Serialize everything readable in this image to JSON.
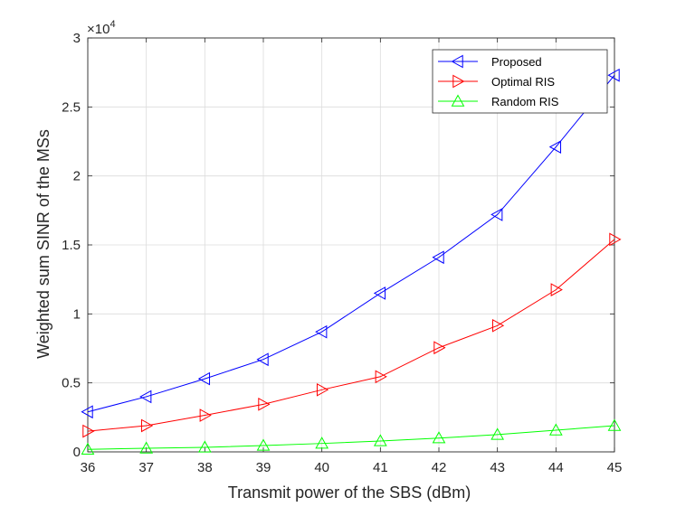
{
  "chart_data": {
    "type": "line",
    "xlabel": "Transmit power of the SBS (dBm)",
    "ylabel": "Weighted sum SINR of the MSs",
    "y_multiplier_base": "×10",
    "y_multiplier_exp": "4",
    "x": [
      36,
      37,
      38,
      39,
      40,
      41,
      42,
      43,
      44,
      45
    ],
    "xlim": [
      36,
      45
    ],
    "ylim": [
      0,
      30000
    ],
    "x_ticks": [
      "36",
      "37",
      "38",
      "39",
      "40",
      "41",
      "42",
      "43",
      "44",
      "45"
    ],
    "y_ticks": [
      "0",
      "0.5",
      "1",
      "1.5",
      "2",
      "2.5",
      "3"
    ],
    "y_tick_values": [
      0,
      5000,
      10000,
      15000,
      20000,
      25000,
      30000
    ],
    "grid": true,
    "legend_position": "top-right",
    "series": [
      {
        "name": "Proposed",
        "color": "#0000ff",
        "marker": "triangle-left",
        "values": [
          2900,
          4000,
          5300,
          6700,
          8700,
          11500,
          14100,
          17200,
          22100,
          27300
        ]
      },
      {
        "name": "Optimal RIS",
        "color": "#ff0000",
        "marker": "triangle-right",
        "values": [
          1500,
          1900,
          2650,
          3450,
          4500,
          5450,
          7550,
          9150,
          11750,
          15400
        ]
      },
      {
        "name": "Random RIS",
        "color": "#00ff00",
        "marker": "triangle-up",
        "values": [
          180,
          260,
          330,
          460,
          610,
          790,
          1000,
          1250,
          1570,
          1900
        ]
      }
    ]
  }
}
